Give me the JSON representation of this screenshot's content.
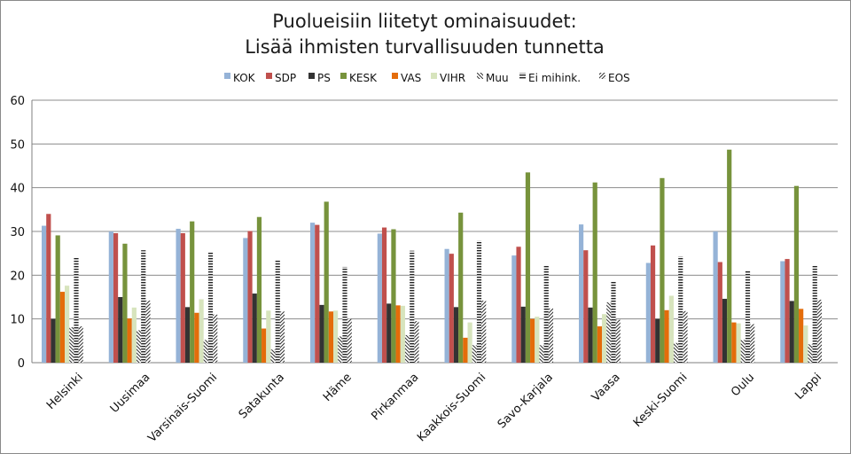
{
  "chart_data": {
    "type": "bar",
    "title_lines": [
      "Puolueisiin liitetyt ominaisuudet:",
      "Lisää ihmisten turvallisuuden tunnetta"
    ],
    "xlabel": "",
    "ylabel": "",
    "ylim": [
      0,
      60
    ],
    "yticks": [
      "0",
      "10",
      "20",
      "30",
      "40",
      "50",
      "60"
    ],
    "grid": true,
    "legend_position": "top",
    "categories": [
      "Helsinki",
      "Uusimaa",
      "Varsinais-Suomi",
      "Satakunta",
      "Häme",
      "Pirkanmaa",
      "Kaakkois-Suomi",
      "Savo-Karjala",
      "Vaasa",
      "Keski-Suomi",
      "Oulu",
      "Lappi"
    ],
    "series": [
      {
        "name": "KOK",
        "color": "#95b3d7",
        "pattern": "solid",
        "values": [
          31.3,
          30.0,
          30.6,
          28.5,
          32.0,
          29.5,
          26.0,
          24.5,
          31.6,
          22.8,
          30.0,
          23.2
        ]
      },
      {
        "name": "SDP",
        "color": "#c0504d",
        "pattern": "solid",
        "values": [
          34.0,
          29.6,
          29.6,
          30.1,
          31.5,
          30.9,
          24.9,
          26.5,
          25.7,
          26.8,
          23.0,
          23.7
        ]
      },
      {
        "name": "PS",
        "color": "#333333",
        "pattern": "solid",
        "values": [
          10.0,
          15.0,
          12.7,
          15.8,
          13.2,
          13.5,
          12.7,
          12.8,
          12.6,
          10.0,
          14.6,
          14.1
        ]
      },
      {
        "name": "KESK",
        "color": "#77933c",
        "pattern": "solid",
        "values": [
          29.1,
          27.2,
          32.3,
          33.3,
          36.8,
          30.5,
          34.3,
          43.5,
          41.2,
          42.2,
          48.7,
          40.4
        ]
      },
      {
        "name": "VAS",
        "color": "#e46c0a",
        "pattern": "solid",
        "values": [
          16.2,
          10.1,
          11.4,
          7.8,
          11.7,
          13.1,
          5.7,
          10.0,
          8.3,
          12.0,
          9.2,
          12.3
        ]
      },
      {
        "name": "VIHR",
        "color": "#d7e4bd",
        "pattern": "solid",
        "values": [
          17.6,
          12.6,
          14.5,
          11.9,
          11.9,
          13.0,
          9.2,
          10.5,
          11.1,
          15.3,
          9.0,
          8.5
        ]
      },
      {
        "name": "Muu",
        "color": "#404040",
        "pattern": "diag-back",
        "values": [
          8.1,
          7.4,
          5.2,
          3.0,
          6.0,
          6.3,
          4.0,
          4.0,
          13.8,
          4.5,
          5.2,
          4.2
        ]
      },
      {
        "name": "Ei mihink.",
        "color": "#404040",
        "pattern": "horiz",
        "values": [
          24.0,
          25.7,
          25.2,
          23.6,
          21.9,
          25.6,
          27.9,
          22.4,
          18.6,
          24.3,
          21.1,
          22.4
        ]
      },
      {
        "name": "EOS",
        "color": "#404040",
        "pattern": "diag-fwd",
        "values": [
          8.3,
          14.2,
          11.0,
          11.7,
          10.0,
          9.5,
          14.2,
          12.4,
          9.8,
          11.8,
          8.8,
          14.4
        ]
      }
    ]
  }
}
